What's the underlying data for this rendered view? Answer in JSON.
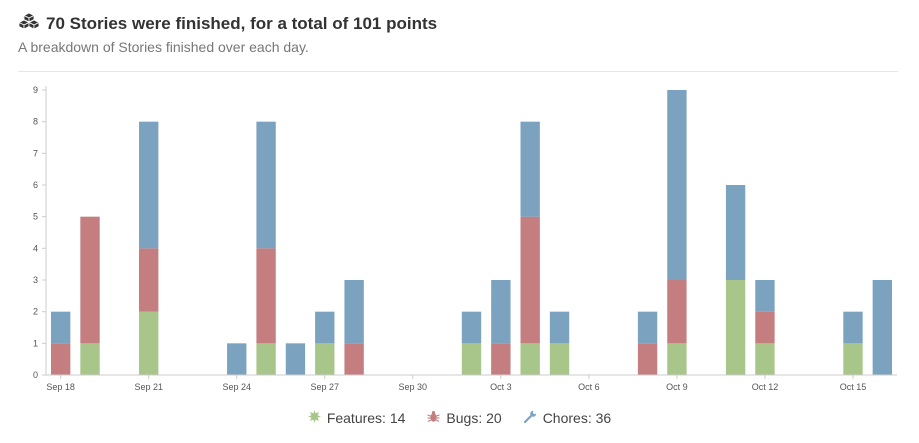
{
  "header": {
    "title": "70 Stories were finished, for a total of 101 points",
    "subtitle": "A breakdown of Stories finished over each day.",
    "icon": "cubes-icon"
  },
  "colors": {
    "features": "#a8c68a",
    "bugs": "#c47e80",
    "chores": "#7ba3bf",
    "axis": "#cccccc",
    "tick_text": "#555555"
  },
  "legend": [
    {
      "key": "features",
      "label": "Features: 14",
      "icon": "feature-star-icon"
    },
    {
      "key": "bugs",
      "label": "Bugs: 20",
      "icon": "bug-icon"
    },
    {
      "key": "chores",
      "label": "Chores: 36",
      "icon": "wrench-icon"
    }
  ],
  "chart_data": {
    "type": "bar",
    "stacked": true,
    "categories": [
      "Sep 18",
      "Sep 19",
      "Sep 20",
      "Sep 21",
      "Sep 22",
      "Sep 23",
      "Sep 24",
      "Sep 25",
      "Sep 26",
      "Sep 27",
      "Sep 28",
      "Sep 29",
      "Sep 30",
      "Oct 1",
      "Oct 2",
      "Oct 3",
      "Oct 4",
      "Oct 5",
      "Oct 6",
      "Oct 7",
      "Oct 8",
      "Oct 9",
      "Oct 10",
      "Oct 11",
      "Oct 12",
      "Oct 13",
      "Oct 14",
      "Oct 15",
      "Oct 16"
    ],
    "tick_labels": [
      "Sep 18",
      "Sep 21",
      "Sep 24",
      "Sep 27",
      "Sep 30",
      "Oct 3",
      "Oct 6",
      "Oct 9",
      "Oct 12",
      "Oct 15"
    ],
    "series": [
      {
        "key": "features",
        "values": [
          0,
          1,
          0,
          2,
          0,
          0,
          0,
          1,
          0,
          1,
          0,
          0,
          0,
          0,
          1,
          0,
          1,
          1,
          0,
          0,
          0,
          1,
          0,
          3,
          1,
          0,
          0,
          1,
          0
        ]
      },
      {
        "key": "bugs",
        "values": [
          1,
          4,
          0,
          2,
          0,
          0,
          0,
          3,
          0,
          0,
          1,
          0,
          0,
          0,
          0,
          1,
          4,
          0,
          0,
          0,
          1,
          2,
          0,
          0,
          1,
          0,
          0,
          0,
          0
        ]
      },
      {
        "key": "chores",
        "values": [
          1,
          0,
          0,
          4,
          0,
          0,
          1,
          4,
          1,
          1,
          2,
          0,
          0,
          0,
          1,
          2,
          3,
          1,
          0,
          0,
          1,
          6,
          0,
          3,
          1,
          0,
          0,
          1,
          3
        ]
      }
    ],
    "ylim": [
      0,
      9
    ],
    "yticks": [
      0,
      1,
      2,
      3,
      4,
      5,
      6,
      7,
      8,
      9
    ],
    "grid": false
  }
}
